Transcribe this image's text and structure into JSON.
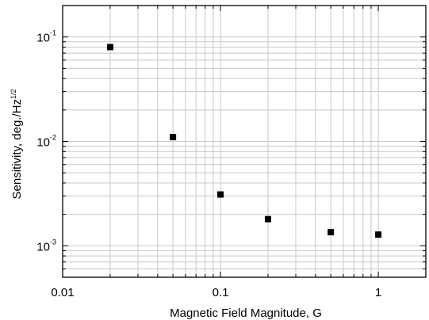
{
  "chart_data": {
    "type": "scatter",
    "xlabel": "Magnetic Field Magnitude, G",
    "ylabel_main": "Sensitivity, deg./Hz",
    "ylabel_sup": "1/2",
    "x_scale": "log",
    "y_scale": "log",
    "xlim": [
      0.01,
      2
    ],
    "ylim": [
      0.0005,
      0.2
    ],
    "grid": true,
    "x_ticks": [
      {
        "value": 0.01,
        "label": "0.01"
      },
      {
        "value": 0.1,
        "label": "0.1"
      },
      {
        "value": 1,
        "label": "1"
      }
    ],
    "y_ticks": [
      {
        "value": 0.1,
        "base": "10",
        "exp": "-1"
      },
      {
        "value": 0.01,
        "base": "10",
        "exp": "-2"
      },
      {
        "value": 0.001,
        "base": "10",
        "exp": "-3"
      }
    ],
    "marker": "square",
    "marker_color": "#000000",
    "grid_color": "#c8c8c8",
    "series": [
      {
        "x": [
          0.02,
          0.05,
          0.1,
          0.2,
          0.5,
          1
        ],
        "y": [
          0.08,
          0.011,
          0.0031,
          0.0018,
          0.00135,
          0.00128
        ]
      }
    ]
  }
}
